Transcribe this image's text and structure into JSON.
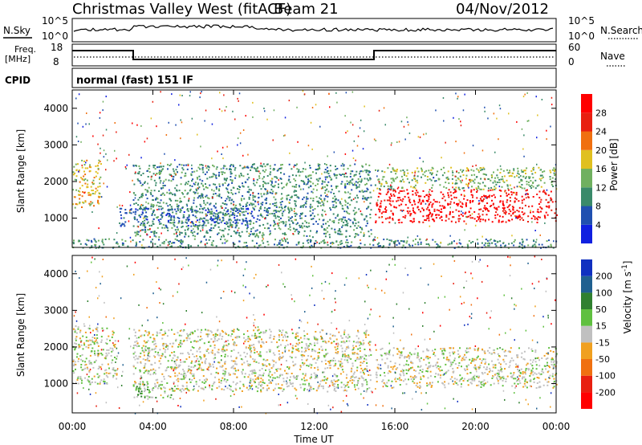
{
  "header": {
    "title": "Christmas Valley West (fitACF)",
    "beam": "Beam 21",
    "date": "04/Nov/2012"
  },
  "strips": {
    "nsky_label": "N.Sky",
    "nsky_tick_top": "10^5",
    "nsky_tick_bottom": "10^0",
    "nsearch_label": "N.Search",
    "freq_label_1": "Freq.",
    "freq_label_2": "[MHz]",
    "freq_tick_top": "18",
    "freq_tick_bottom": "8",
    "nave_label": "Nave",
    "nave_tick_top": "60",
    "nave_tick_bottom": "0",
    "cpid_label": "CPID",
    "cpid_text": "normal (fast) 151 IF"
  },
  "chart_data": [
    {
      "type": "heatmap",
      "name": "power",
      "ylabel": "Slant Range [km]",
      "yticks": [
        "1000",
        "2000",
        "3000",
        "4000"
      ],
      "ylim": [
        200,
        4500
      ],
      "xlim": [
        0,
        24
      ],
      "colorbar": {
        "label": "Power [dB]",
        "ticks": [
          "4",
          "8",
          "12",
          "16",
          "20",
          "24",
          "28"
        ],
        "colors": [
          "#1020e0",
          "#2050b0",
          "#3a8a6a",
          "#70b060",
          "#e0c020",
          "#f07010",
          "#e82010",
          "#ff0000"
        ]
      },
      "regions": [
        {
          "desc": "arc echo",
          "x": [
            0.0,
            1.4
          ],
          "y": [
            1300,
            2600
          ],
          "level": 4
        },
        {
          "desc": "mid band",
          "x": [
            2.3,
            9.0
          ],
          "y": [
            800,
            1300
          ],
          "level": 1
        },
        {
          "desc": "descending band",
          "x": [
            3.0,
            14.8
          ],
          "y": [
            500,
            2500
          ],
          "level": 2
        },
        {
          "desc": "strong band",
          "x": [
            15.0,
            24.0
          ],
          "y": [
            900,
            1800
          ],
          "level": 7
        },
        {
          "desc": "upper band",
          "x": [
            15.0,
            24.0
          ],
          "y": [
            1800,
            2400
          ],
          "level": 3
        },
        {
          "desc": "near range",
          "x": [
            0.0,
            24.0
          ],
          "y": [
            200,
            450
          ],
          "level": 2
        }
      ]
    },
    {
      "type": "heatmap",
      "name": "velocity",
      "ylabel": "Slant Range [km]",
      "xlabel": "Time UT",
      "xticks": [
        "00:00",
        "04:00",
        "08:00",
        "12:00",
        "16:00",
        "20:00",
        "00:00"
      ],
      "yticks": [
        "1000",
        "2000",
        "3000",
        "4000"
      ],
      "ylim": [
        200,
        4500
      ],
      "xlim": [
        0,
        24
      ],
      "colorbar": {
        "label": "Velocity [m s^-1]",
        "ticks": [
          "200",
          "100",
          "50",
          "15",
          "-15",
          "-50",
          "-100",
          "-200"
        ],
        "colors": [
          "#1030c0",
          "#206090",
          "#308030",
          "#60c040",
          "#c0c0c0",
          "#f0a020",
          "#f07010",
          "#e82010",
          "#ff0000"
        ]
      },
      "regions": [
        {
          "desc": "ground scatter arc",
          "x": [
            0.0,
            2.2
          ],
          "y": [
            1000,
            2600
          ],
          "level": 4
        },
        {
          "desc": "low velocity band",
          "x": [
            3.0,
            14.8
          ],
          "y": [
            800,
            2500
          ],
          "level": 4
        },
        {
          "desc": "green patch",
          "x": [
            3.0,
            5.0
          ],
          "y": [
            600,
            1000
          ],
          "level": 3
        },
        {
          "desc": "broad ground scatter",
          "x": [
            15.0,
            24.0
          ],
          "y": [
            900,
            2000
          ],
          "level": 4
        }
      ]
    }
  ]
}
